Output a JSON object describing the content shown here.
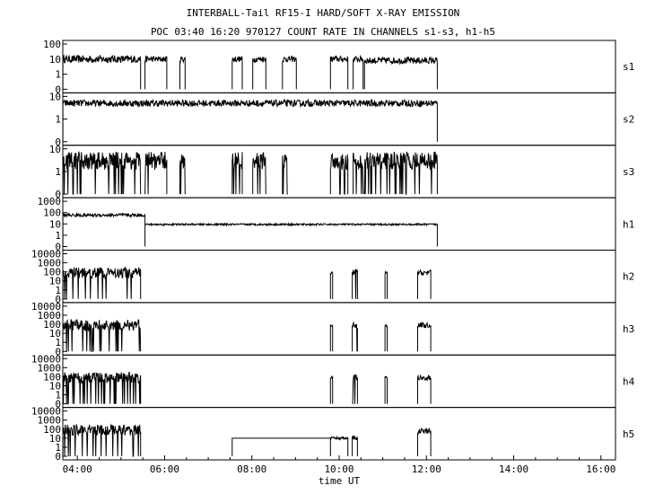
{
  "title": "INTERBALL-Tail RF15-I HARD/SOFT X-RAY EMISSION",
  "subtitle": "POC 03:40 16:20 970127  COUNT RATE IN CHANNELS s1-s3, h1-h5",
  "chart_data": {
    "type": "line",
    "title": "INTERBALL-Tail RF15-I HARD/SOFT X-RAY EMISSION",
    "subtitle": "POC 03:40 16:20 970127  COUNT RATE IN CHANNELS s1-s3, h1-h5",
    "xlabel": "time UT",
    "x_range_hours": [
      3.667,
      16.333
    ],
    "x_ticks": [
      {
        "t": 4,
        "label": "04:00"
      },
      {
        "t": 6,
        "label": "06:00"
      },
      {
        "t": 8,
        "label": "08:00"
      },
      {
        "t": 10,
        "label": "10:00"
      },
      {
        "t": 12,
        "label": "12:00"
      },
      {
        "t": 14,
        "label": "14:00"
      },
      {
        "t": 16,
        "label": "16:00"
      }
    ],
    "y_scale": "log (0 = baseline)",
    "grid": false,
    "panels": [
      {
        "name": "s1",
        "y_ticks": [
          "100",
          "10",
          "1",
          "0"
        ],
        "segments": [
          {
            "start": 3.67,
            "end": 5.45,
            "level": 10,
            "noise": 0.25
          },
          {
            "start": 5.55,
            "end": 6.05,
            "level": 10,
            "noise": 0.2
          },
          {
            "start": 6.35,
            "end": 6.47,
            "level": 10,
            "noise": 0.2
          },
          {
            "start": 7.55,
            "end": 7.78,
            "level": 10,
            "noise": 0.2
          },
          {
            "start": 8.02,
            "end": 8.32,
            "level": 10,
            "noise": 0.2
          },
          {
            "start": 8.7,
            "end": 9.02,
            "level": 10,
            "noise": 0.2
          },
          {
            "start": 9.8,
            "end": 10.2,
            "level": 10,
            "noise": 0.2
          },
          {
            "start": 10.32,
            "end": 10.55,
            "level": 10,
            "noise": 0.2
          },
          {
            "start": 10.58,
            "end": 12.25,
            "level": 8,
            "noise": 0.22
          }
        ]
      },
      {
        "name": "s2",
        "y_ticks": [
          "10",
          "1",
          "0"
        ],
        "segments": [
          {
            "start": 3.67,
            "end": 12.25,
            "level": 5,
            "noise": 0.15
          }
        ]
      },
      {
        "name": "s3",
        "y_ticks": [
          "10",
          "1",
          "0"
        ],
        "segments": [
          {
            "start": 3.67,
            "end": 5.45,
            "level": 3,
            "noise": 0.4
          },
          {
            "start": 5.55,
            "end": 6.05,
            "level": 3,
            "noise": 0.4
          },
          {
            "start": 6.35,
            "end": 6.47,
            "level": 3,
            "noise": 0.4
          },
          {
            "start": 7.55,
            "end": 7.78,
            "level": 3,
            "noise": 0.4
          },
          {
            "start": 8.02,
            "end": 8.32,
            "level": 3,
            "noise": 0.4
          },
          {
            "start": 8.7,
            "end": 8.82,
            "level": 3,
            "noise": 0.4
          },
          {
            "start": 9.8,
            "end": 10.2,
            "level": 3,
            "noise": 0.4
          },
          {
            "start": 10.32,
            "end": 10.55,
            "level": 3,
            "noise": 0.4
          },
          {
            "start": 10.58,
            "end": 12.25,
            "level": 3,
            "noise": 0.4
          }
        ]
      },
      {
        "name": "h1",
        "y_ticks": [
          "1000",
          "100",
          "10",
          "1",
          "0"
        ],
        "segments": [
          {
            "start": 3.67,
            "end": 5.55,
            "level": 60,
            "noise": 0.15
          },
          {
            "start": 5.55,
            "end": 12.25,
            "level": 9,
            "noise": 0.08
          }
        ]
      },
      {
        "name": "h2",
        "y_ticks": [
          "10000",
          "1000",
          "100",
          "10",
          "1",
          "0"
        ],
        "segments": [
          {
            "start": 3.67,
            "end": 5.45,
            "level": 80,
            "noise": 0.6
          },
          {
            "start": 9.8,
            "end": 9.85,
            "level": 80,
            "noise": 0.2
          },
          {
            "start": 10.3,
            "end": 10.42,
            "level": 80,
            "noise": 0.4
          },
          {
            "start": 11.05,
            "end": 11.1,
            "level": 80,
            "noise": 0.2
          },
          {
            "start": 11.8,
            "end": 12.1,
            "level": 80,
            "noise": 0.3
          }
        ]
      },
      {
        "name": "h3",
        "y_ticks": [
          "10000",
          "1000",
          "100",
          "10",
          "1",
          "0"
        ],
        "segments": [
          {
            "start": 3.67,
            "end": 5.45,
            "level": 80,
            "noise": 0.6
          },
          {
            "start": 9.8,
            "end": 9.85,
            "level": 80,
            "noise": 0.2
          },
          {
            "start": 10.3,
            "end": 10.42,
            "level": 80,
            "noise": 0.4
          },
          {
            "start": 11.05,
            "end": 11.1,
            "level": 80,
            "noise": 0.2
          },
          {
            "start": 11.8,
            "end": 12.1,
            "level": 80,
            "noise": 0.3
          }
        ]
      },
      {
        "name": "h4",
        "y_ticks": [
          "10000",
          "1000",
          "100",
          "10",
          "1",
          "0"
        ],
        "segments": [
          {
            "start": 3.67,
            "end": 5.45,
            "level": 80,
            "noise": 0.6
          },
          {
            "start": 9.8,
            "end": 9.85,
            "level": 80,
            "noise": 0.2
          },
          {
            "start": 10.3,
            "end": 10.42,
            "level": 80,
            "noise": 0.4
          },
          {
            "start": 11.05,
            "end": 11.1,
            "level": 80,
            "noise": 0.2
          },
          {
            "start": 11.8,
            "end": 12.1,
            "level": 80,
            "noise": 0.3
          }
        ]
      },
      {
        "name": "h5",
        "y_ticks": [
          "10000",
          "1000",
          "100",
          "10",
          "1",
          "0"
        ],
        "segments": [
          {
            "start": 3.67,
            "end": 5.45,
            "level": 80,
            "noise": 0.6
          },
          {
            "start": 7.55,
            "end": 9.8,
            "level": 10,
            "noise": 0.0
          },
          {
            "start": 9.8,
            "end": 10.2,
            "level": 10,
            "noise": 0.15
          },
          {
            "start": 10.3,
            "end": 10.42,
            "level": 10,
            "noise": 0.3
          },
          {
            "start": 11.8,
            "end": 12.1,
            "level": 60,
            "noise": 0.3
          }
        ]
      }
    ]
  }
}
